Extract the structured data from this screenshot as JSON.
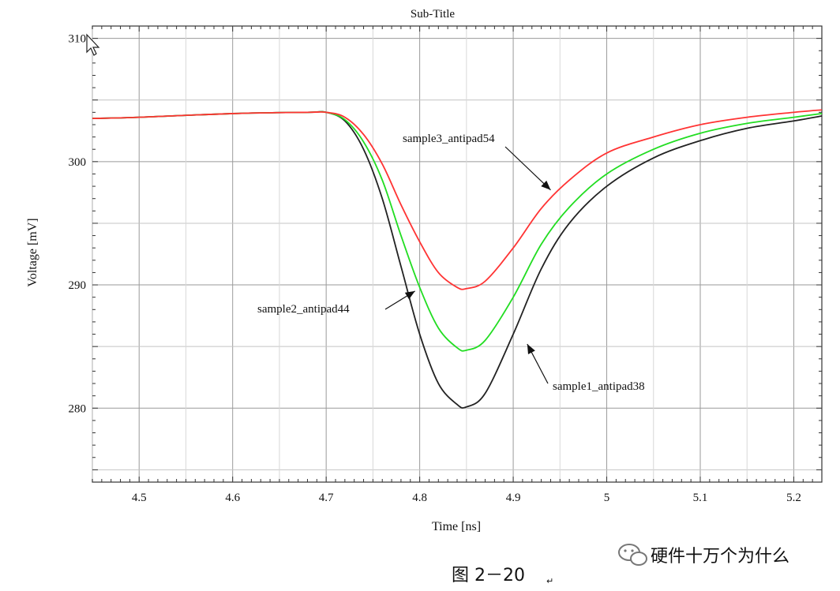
{
  "chart_data": {
    "type": "line",
    "title": "Sub-Title",
    "xlabel": "Time [ns]",
    "ylabel": "Voltage [mV]",
    "xlim": [
      4.45,
      5.23
    ],
    "ylim": [
      274,
      311
    ],
    "grid": true,
    "x_ticks": [
      "4.5",
      "4.6",
      "4.7",
      "4.8",
      "4.9",
      "5",
      "5.1",
      "5.2"
    ],
    "y_ticks": [
      "280",
      "290",
      "300",
      "310"
    ],
    "series": [
      {
        "name": "sample1_antipad38",
        "color": "#222222",
        "x": [
          4.45,
          4.5,
          4.6,
          4.68,
          4.7,
          4.72,
          4.74,
          4.76,
          4.78,
          4.8,
          4.82,
          4.84,
          4.85,
          4.87,
          4.9,
          4.93,
          4.96,
          5.0,
          5.05,
          5.1,
          5.15,
          5.2,
          5.23
        ],
        "y": [
          303.5,
          303.6,
          303.9,
          304.0,
          304.0,
          303.3,
          301.0,
          297.0,
          291.5,
          286.0,
          282.0,
          280.3,
          280.1,
          281.2,
          286.0,
          291.3,
          295.0,
          298.0,
          300.3,
          301.7,
          302.7,
          303.3,
          303.7
        ]
      },
      {
        "name": "sample2_antipad44",
        "color": "#22dd22",
        "x": [
          4.45,
          4.5,
          4.6,
          4.68,
          4.7,
          4.72,
          4.74,
          4.76,
          4.78,
          4.8,
          4.82,
          4.84,
          4.85,
          4.87,
          4.9,
          4.93,
          4.96,
          5.0,
          5.05,
          5.1,
          5.15,
          5.2,
          5.23
        ],
        "y": [
          303.5,
          303.6,
          303.9,
          304.0,
          304.0,
          303.4,
          301.6,
          298.5,
          294.0,
          289.8,
          286.5,
          284.9,
          284.7,
          285.5,
          289.0,
          293.3,
          296.3,
          299.0,
          301.0,
          302.3,
          303.1,
          303.6,
          303.9
        ]
      },
      {
        "name": "sample3_antipad54",
        "color": "#ff3333",
        "x": [
          4.45,
          4.5,
          4.6,
          4.68,
          4.7,
          4.72,
          4.74,
          4.76,
          4.78,
          4.8,
          4.82,
          4.84,
          4.85,
          4.87,
          4.9,
          4.93,
          4.96,
          5.0,
          5.05,
          5.1,
          5.15,
          5.2,
          5.23
        ],
        "y": [
          303.5,
          303.6,
          303.9,
          304.0,
          304.0,
          303.6,
          302.2,
          299.8,
          296.5,
          293.5,
          291.0,
          289.8,
          289.7,
          290.3,
          293.0,
          296.2,
          298.5,
          300.7,
          302.0,
          303.0,
          303.6,
          304.0,
          304.2
        ]
      }
    ],
    "annotations": [
      {
        "text": "sample3_antipad54",
        "series": 2,
        "point": [
          4.94,
          297.7
        ]
      },
      {
        "text": "sample2_antipad44",
        "series": 1,
        "point": [
          4.795,
          289.5
        ]
      },
      {
        "text": "sample1_antipad38",
        "series": 0,
        "point": [
          4.915,
          285.2
        ]
      }
    ]
  },
  "caption": "图 2－20",
  "caption_mark": "↵",
  "watermark": {
    "icon": "wechat-icon",
    "text": "硬件十万个为什么"
  }
}
